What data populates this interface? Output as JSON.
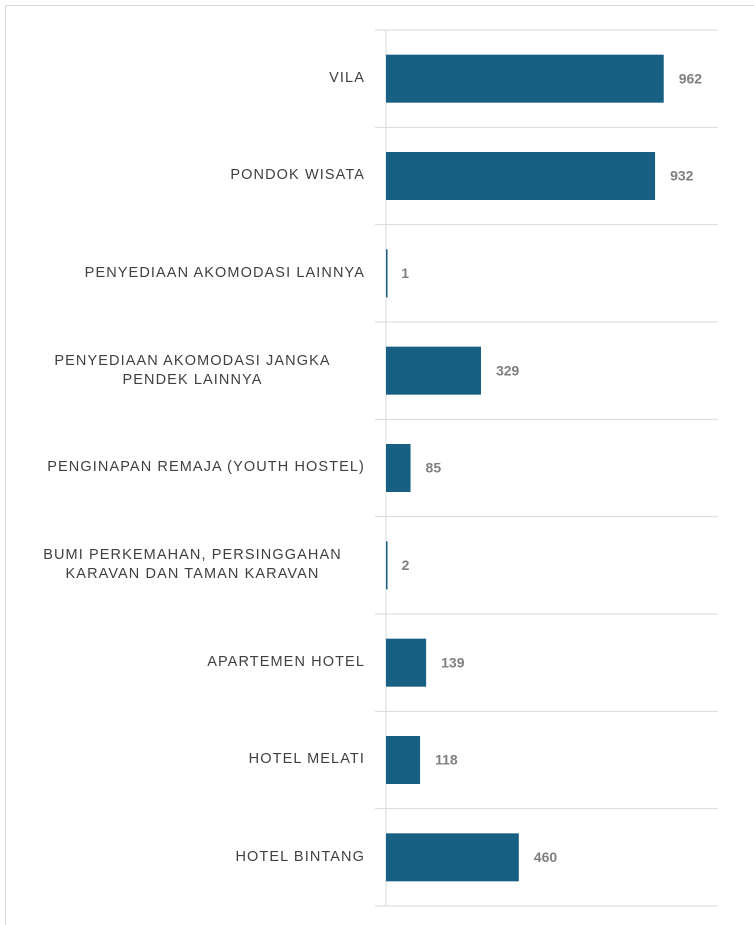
{
  "chart_data": {
    "type": "bar",
    "orientation": "horizontal",
    "categories": [
      "VILA",
      "PONDOK WISATA",
      "PENYEDIAAN AKOMODASI LAINNYA",
      "PENYEDIAAN AKOMODASI JANGKA PENDEK LAINNYA",
      "PENGINAPAN REMAJA (YOUTH HOSTEL)",
      "BUMI PERKEMAHAN, PERSINGGAHAN KARAVAN DAN TAMAN KARAVAN",
      "APARTEMEN HOTEL",
      "HOTEL MELATI",
      "HOTEL BINTANG"
    ],
    "values": [
      962,
      932,
      1,
      329,
      85,
      2,
      139,
      118,
      460
    ],
    "color": "#175f83",
    "xlim": [
      0,
      1150
    ]
  }
}
